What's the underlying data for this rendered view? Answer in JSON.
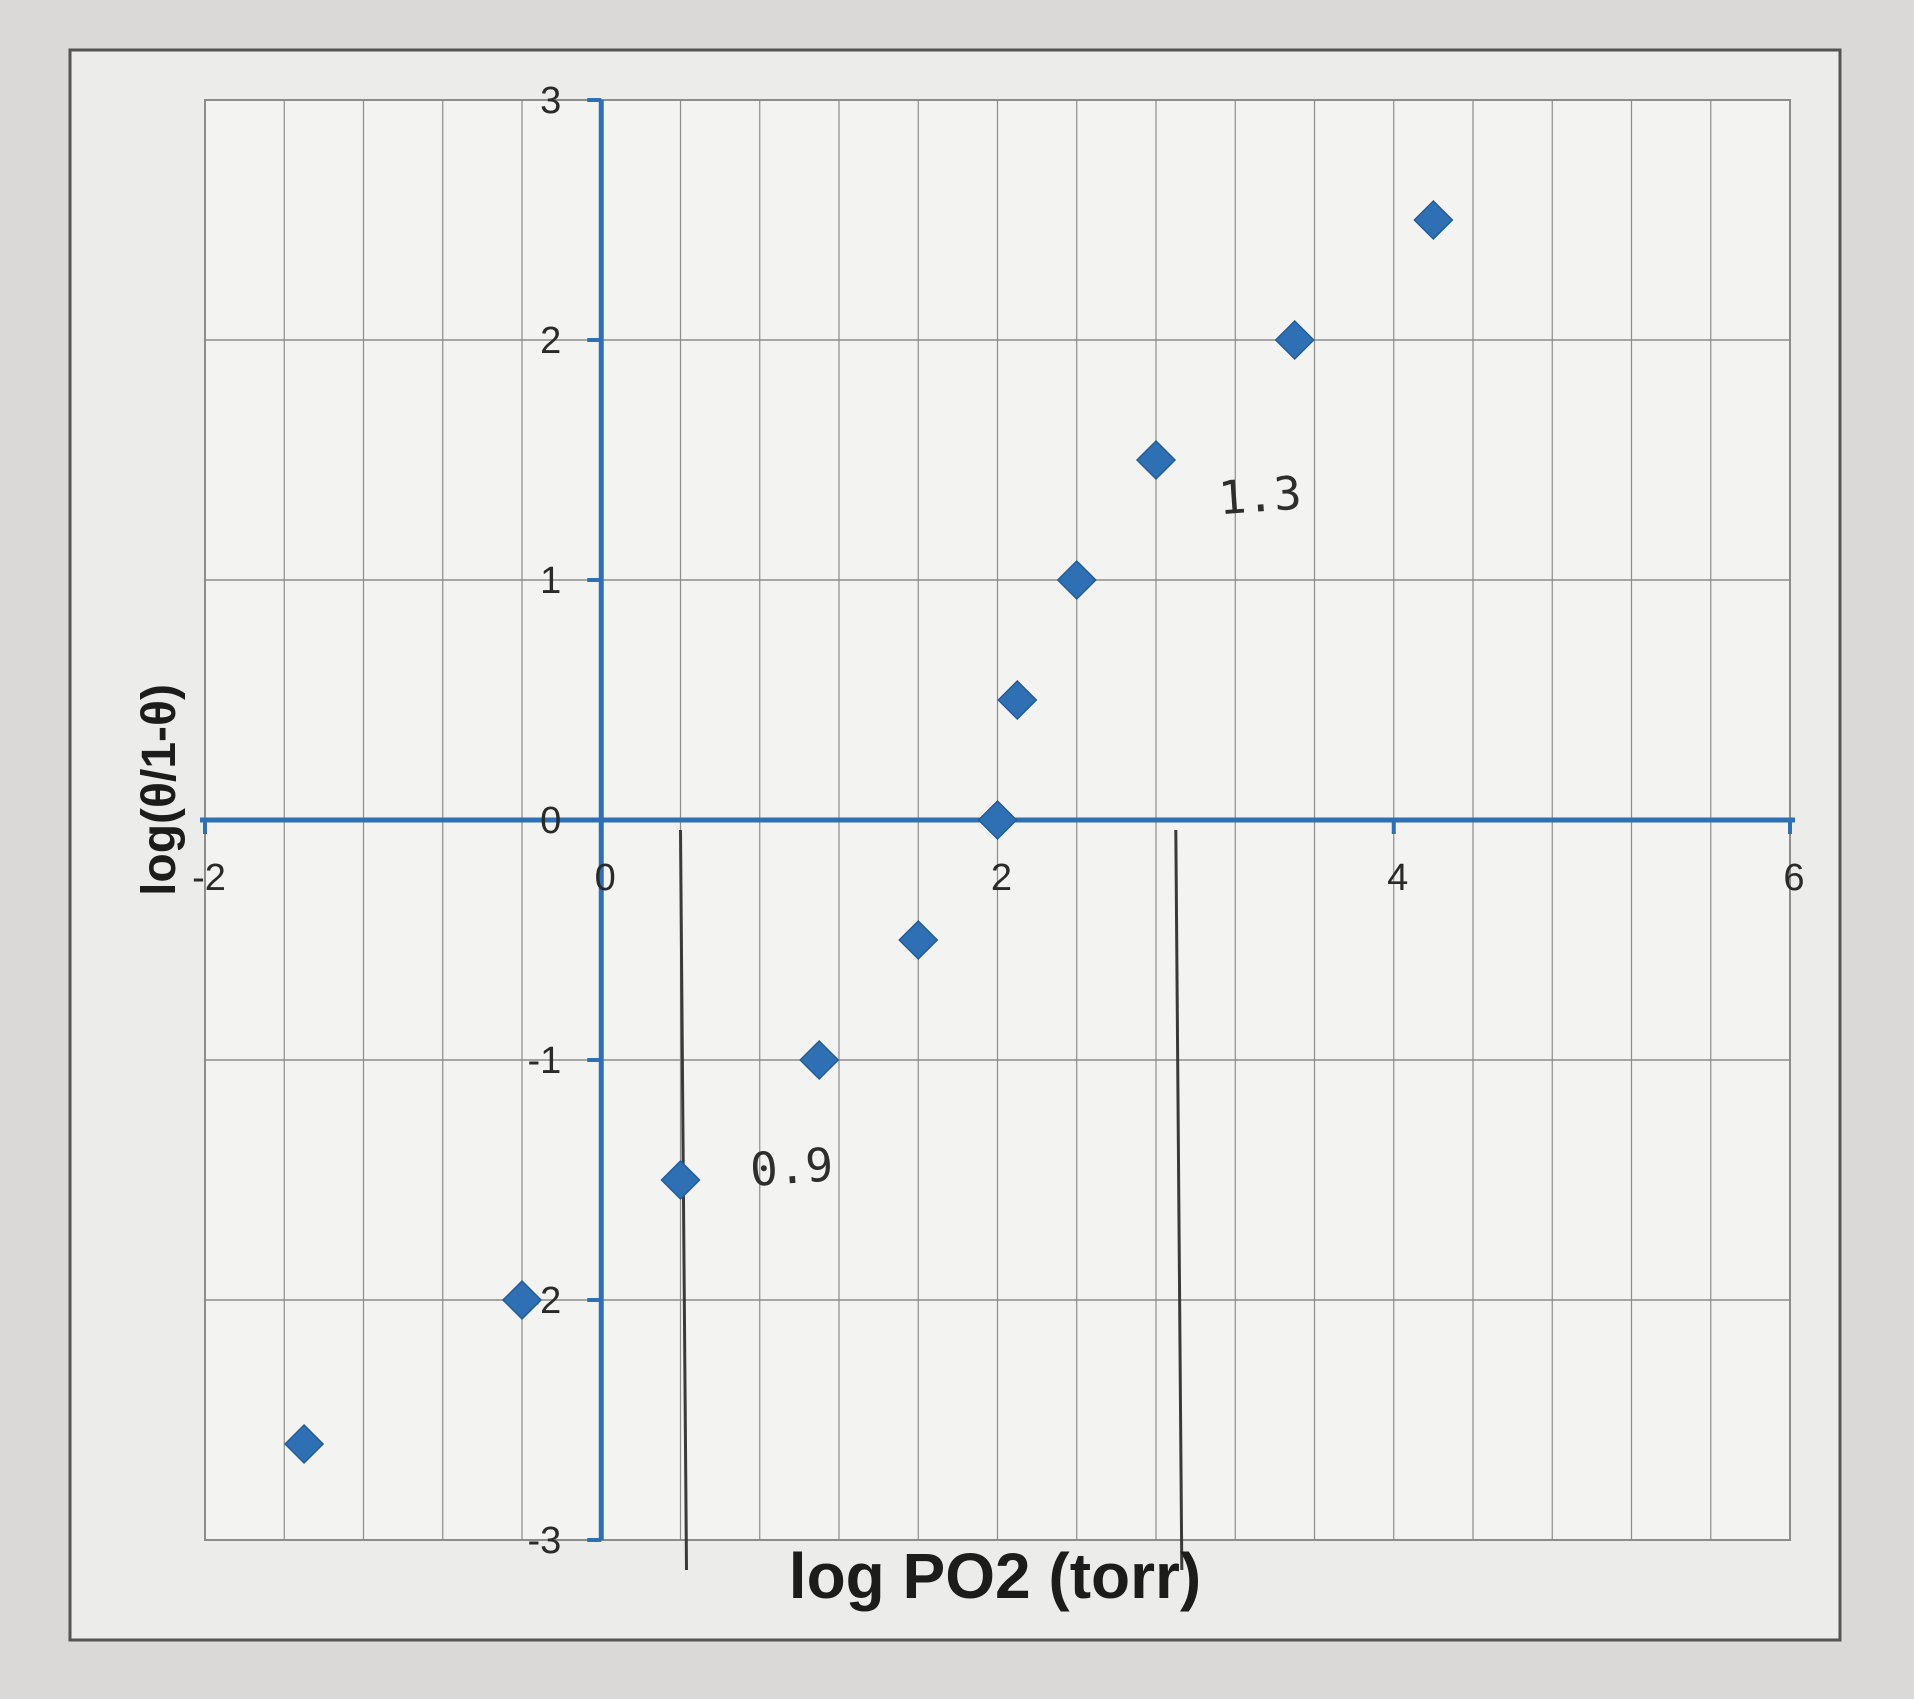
{
  "chart_data": {
    "type": "scatter",
    "title": "",
    "xlabel": "log PO2 (torr)",
    "ylabel": "log(θ/1-θ)",
    "xlim": [
      -2,
      6
    ],
    "ylim": [
      -3,
      3
    ],
    "x_ticks": [
      "-2",
      "0",
      "2",
      "4",
      "6"
    ],
    "y_ticks": [
      "3",
      "2",
      "1",
      "0",
      "-1",
      "-2",
      "-3"
    ],
    "grid": true,
    "marker": "diamond",
    "color": "#2f6fb3",
    "points": [
      {
        "x": -1.5,
        "y": -2.6
      },
      {
        "x": -0.4,
        "y": -2.0
      },
      {
        "x": 0.4,
        "y": -1.5
      },
      {
        "x": 1.1,
        "y": -1.0
      },
      {
        "x": 1.6,
        "y": -0.5
      },
      {
        "x": 2.0,
        "y": 0.0
      },
      {
        "x": 2.1,
        "y": 0.5
      },
      {
        "x": 2.4,
        "y": 1.0
      },
      {
        "x": 2.8,
        "y": 1.5
      },
      {
        "x": 3.5,
        "y": 2.0
      },
      {
        "x": 4.2,
        "y": 2.5
      }
    ],
    "annotations": [
      {
        "text": "0.9",
        "x_value": 0.4
      },
      {
        "text": "1.3",
        "x_value": 2.9
      }
    ]
  },
  "colors": {
    "axis": "#2f6fb3",
    "grid": "#8c8c8c",
    "paper": "#eeeeec",
    "pencil": "#3a3a3a"
  }
}
